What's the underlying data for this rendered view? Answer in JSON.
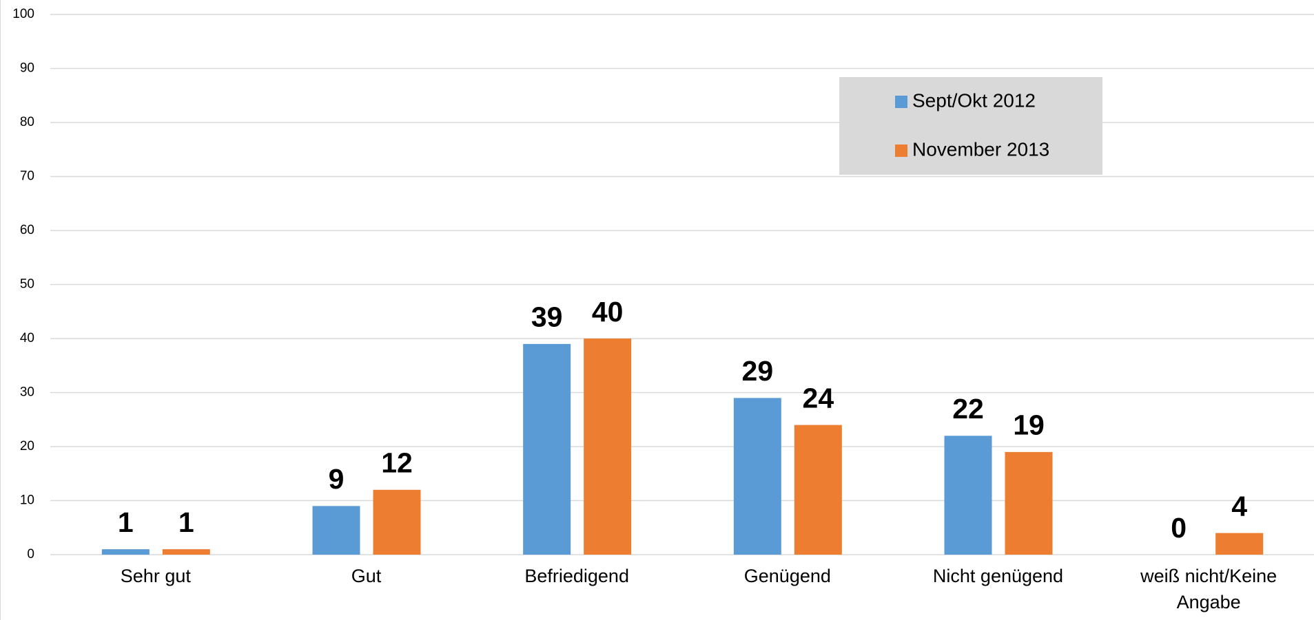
{
  "chart_data": {
    "type": "bar",
    "categories": [
      "Sehr gut",
      "Gut",
      "Befriedigend",
      "Genügend",
      "Nicht genügend",
      "weiß nicht/Keine Angabe"
    ],
    "series": [
      {
        "name": "Sept/Okt 2012",
        "color": "#5b9bd5",
        "values": [
          1,
          9,
          39,
          29,
          22,
          0
        ]
      },
      {
        "name": "November 2013",
        "color": "#ed7d31",
        "values": [
          1,
          12,
          40,
          24,
          19,
          4
        ]
      }
    ],
    "ylim": [
      0,
      100
    ],
    "yticks": [
      0,
      10,
      20,
      30,
      40,
      50,
      60,
      70,
      80,
      90,
      100
    ],
    "grid": true,
    "legend": "top-right"
  }
}
